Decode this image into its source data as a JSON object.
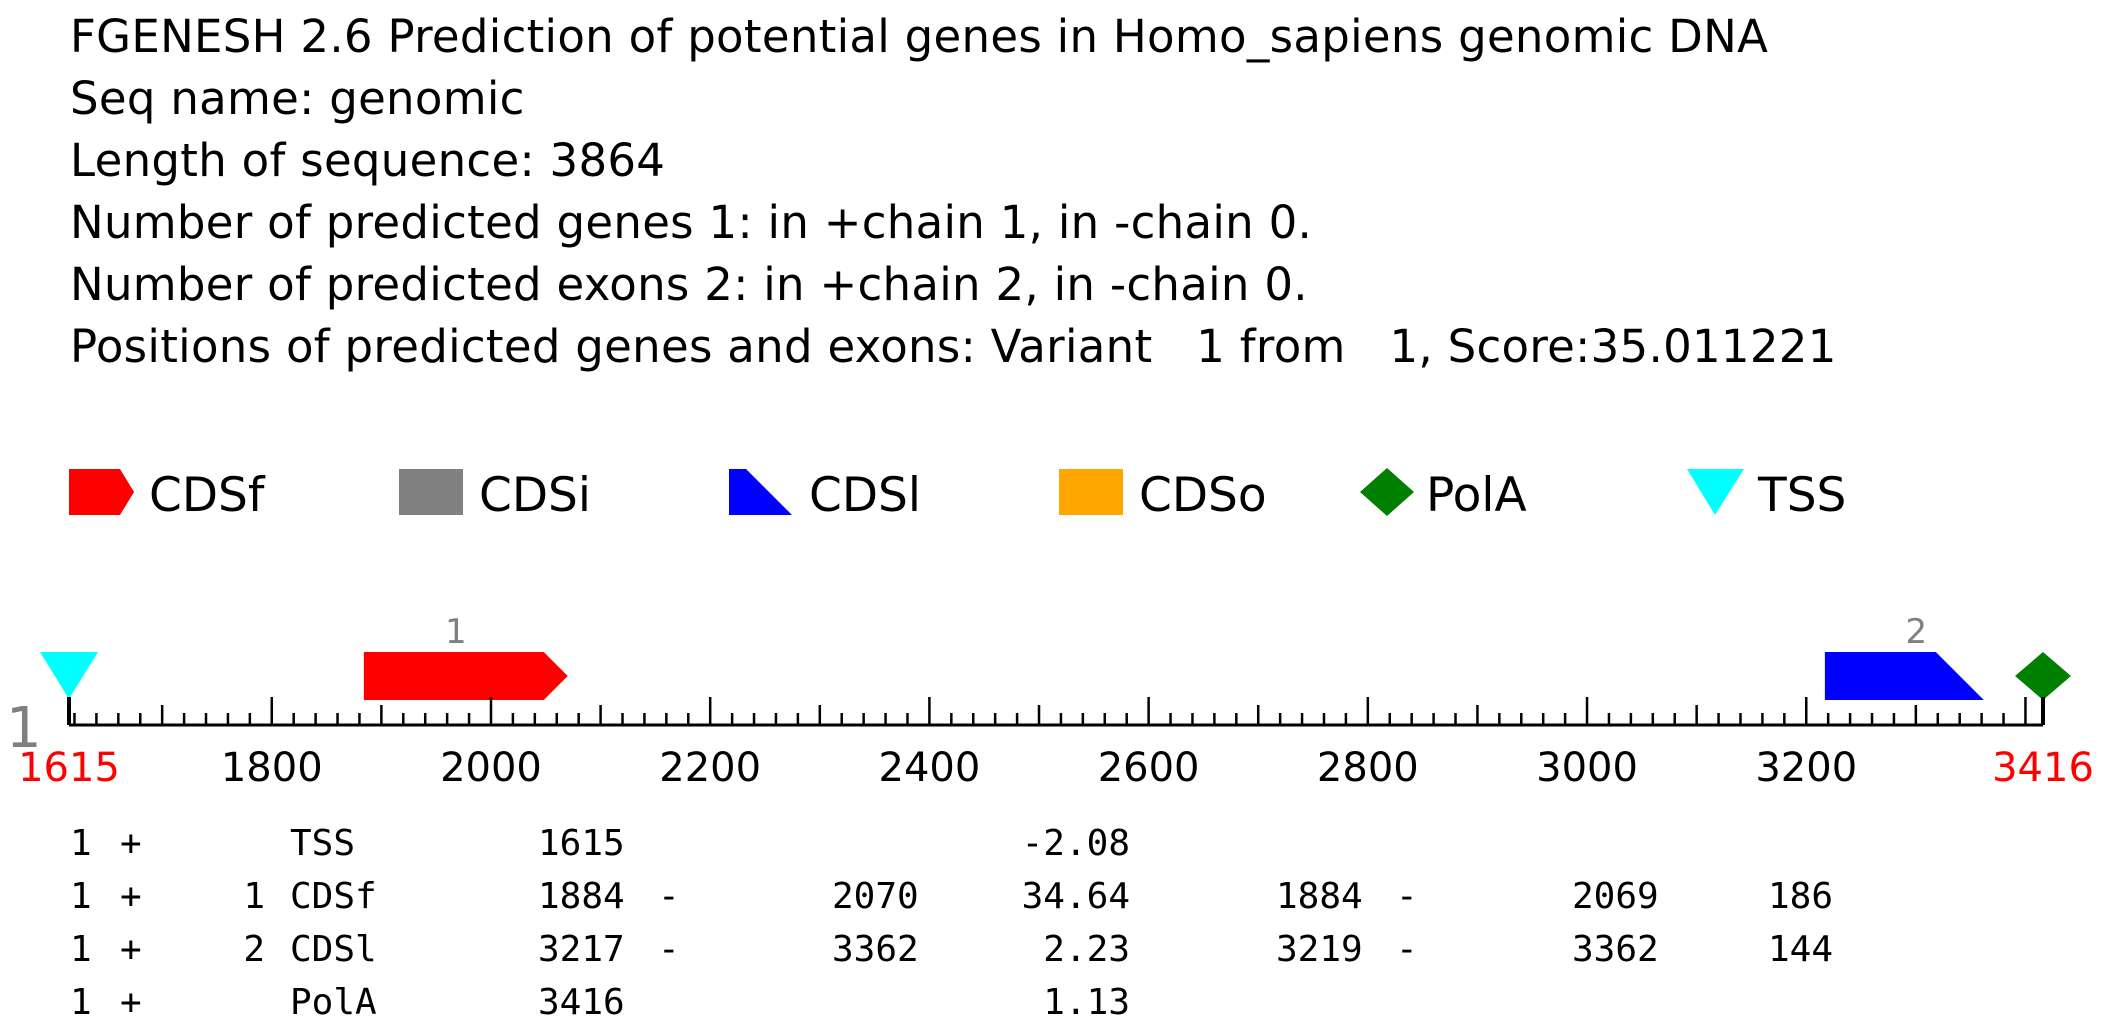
{
  "header": {
    "title": "FGENESH 2.6 Prediction of potential genes in Homo_sapiens genomic DNA",
    "seq_name": "Seq name: genomic",
    "length": "Length of sequence: 3864",
    "genes": "Number of predicted genes 1: in +chain 1, in -chain 0.",
    "exons": "Number of predicted exons 2: in +chain 2, in -chain 0.",
    "positions": "Positions of predicted genes and exons: Variant   1 from   1, Score:35.011221"
  },
  "legend": [
    {
      "label": "CDSf",
      "shape": "right-arrow-icon",
      "color": "#ff0000"
    },
    {
      "label": "CDSi",
      "shape": "square-icon",
      "color": "#808080"
    },
    {
      "label": "CDSl",
      "shape": "right-triangle-icon",
      "color": "#0000ff"
    },
    {
      "label": "CDSo",
      "shape": "square-icon",
      "color": "#ffa500"
    },
    {
      "label": "PolA",
      "shape": "diamond-icon",
      "color": "#008000"
    },
    {
      "label": "TSS",
      "shape": "down-triangle-icon",
      "color": "#00ffff"
    }
  ],
  "map": {
    "strand_label": "1",
    "range": [
      1615,
      3416
    ],
    "start_label": "1615",
    "end_label": "3416",
    "tick_labels": [
      "1800",
      "2000",
      "2200",
      "2400",
      "2600",
      "2800",
      "3000",
      "3200"
    ],
    "features": [
      {
        "type": "TSS",
        "pos": 1615,
        "color": "#00ffff"
      },
      {
        "type": "CDSf",
        "start": 1884,
        "end": 2070,
        "label": "1",
        "color": "#ff0000"
      },
      {
        "type": "CDSl",
        "start": 3217,
        "end": 3362,
        "label": "2",
        "color": "#0000ff"
      },
      {
        "type": "PolA",
        "pos": 3416,
        "color": "#008000"
      }
    ],
    "boundary_color": "#ff0000",
    "tick_label_color": "#000000",
    "exon_number_color": "#808080"
  },
  "table": {
    "rows": [
      {
        "gene": "1",
        "strand": "+",
        "num": "",
        "type": "TSS",
        "start": "1615",
        "dash1": "",
        "end": "",
        "score": "-2.08",
        "orf_start": "",
        "dash2": "",
        "orf_end": "",
        "len": ""
      },
      {
        "gene": "1",
        "strand": "+",
        "num": "1",
        "type": "CDSf",
        "start": "1884",
        "dash1": "-",
        "end": "2070",
        "score": "34.64",
        "orf_start": "1884",
        "dash2": "-",
        "orf_end": "2069",
        "len": "186"
      },
      {
        "gene": "1",
        "strand": "+",
        "num": "2",
        "type": "CDSl",
        "start": "3217",
        "dash1": "-",
        "end": "3362",
        "score": "2.23",
        "orf_start": "3219",
        "dash2": "-",
        "orf_end": "3362",
        "len": "144"
      },
      {
        "gene": "1",
        "strand": "+",
        "num": "",
        "type": "PolA",
        "start": "3416",
        "dash1": "",
        "end": "",
        "score": "1.13",
        "orf_start": "",
        "dash2": "",
        "orf_end": "",
        "len": ""
      }
    ]
  }
}
